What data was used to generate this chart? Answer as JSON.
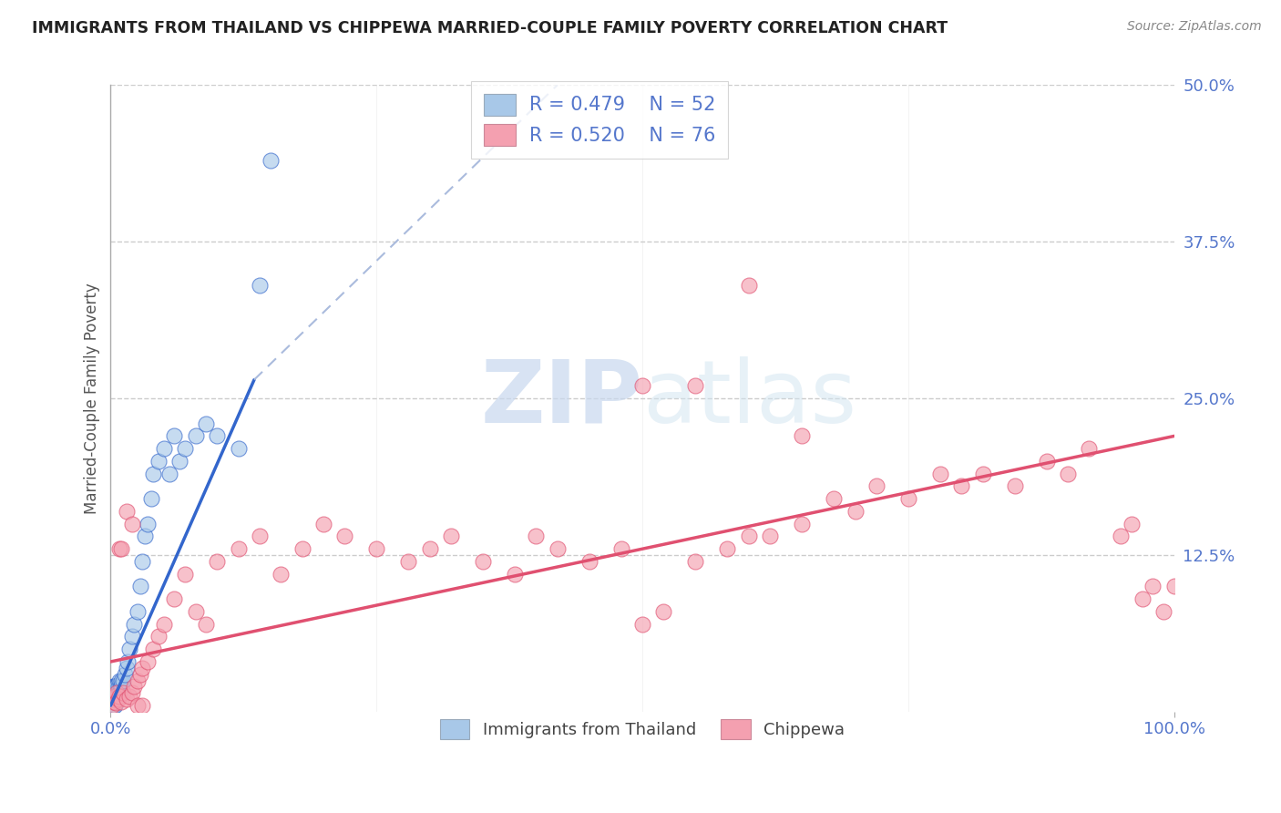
{
  "title": "IMMIGRANTS FROM THAILAND VS CHIPPEWA MARRIED-COUPLE FAMILY POVERTY CORRELATION CHART",
  "source": "Source: ZipAtlas.com",
  "ylabel": "Married-Couple Family Poverty",
  "xlim": [
    0,
    1.0
  ],
  "ylim": [
    0,
    0.5
  ],
  "xticks": [
    0.0,
    1.0
  ],
  "xticklabels": [
    "0.0%",
    "100.0%"
  ],
  "yticks": [
    0.0,
    0.125,
    0.25,
    0.375,
    0.5
  ],
  "yticklabels": [
    "",
    "12.5%",
    "25.0%",
    "37.5%",
    "50.0%"
  ],
  "legend_label1": "Immigrants from Thailand",
  "legend_label2": "Chippewa",
  "r1": "0.479",
  "n1": "52",
  "r2": "0.520",
  "n2": "76",
  "color1": "#a8c8e8",
  "color2": "#f4a0b0",
  "trendline1_color": "#3366cc",
  "trendline2_color": "#e05070",
  "dashed_color": "#aabbdd",
  "watermark_zip": "ZIP",
  "watermark_atlas": "atlas",
  "background_color": "#ffffff",
  "grid_color": "#cccccc",
  "tick_color": "#5577cc",
  "scatter1_x": [
    0.001,
    0.001,
    0.001,
    0.002,
    0.002,
    0.002,
    0.002,
    0.003,
    0.003,
    0.003,
    0.003,
    0.004,
    0.004,
    0.004,
    0.005,
    0.005,
    0.005,
    0.006,
    0.006,
    0.007,
    0.007,
    0.008,
    0.008,
    0.009,
    0.01,
    0.01,
    0.012,
    0.013,
    0.015,
    0.016,
    0.018,
    0.02,
    0.022,
    0.025,
    0.028,
    0.03,
    0.032,
    0.035,
    0.038,
    0.04,
    0.045,
    0.05,
    0.055,
    0.06,
    0.065,
    0.07,
    0.08,
    0.09,
    0.1,
    0.12,
    0.14,
    0.15
  ],
  "scatter1_y": [
    0.005,
    0.01,
    0.015,
    0.005,
    0.01,
    0.015,
    0.02,
    0.005,
    0.01,
    0.015,
    0.02,
    0.005,
    0.01,
    0.02,
    0.01,
    0.015,
    0.02,
    0.01,
    0.02,
    0.015,
    0.02,
    0.015,
    0.025,
    0.02,
    0.02,
    0.025,
    0.025,
    0.03,
    0.035,
    0.04,
    0.05,
    0.06,
    0.07,
    0.08,
    0.1,
    0.12,
    0.14,
    0.15,
    0.17,
    0.19,
    0.2,
    0.21,
    0.19,
    0.22,
    0.2,
    0.21,
    0.22,
    0.23,
    0.22,
    0.21,
    0.34,
    0.44
  ],
  "scatter2_x": [
    0.001,
    0.002,
    0.003,
    0.004,
    0.005,
    0.006,
    0.007,
    0.008,
    0.01,
    0.012,
    0.015,
    0.018,
    0.02,
    0.022,
    0.025,
    0.028,
    0.03,
    0.035,
    0.04,
    0.045,
    0.05,
    0.06,
    0.07,
    0.08,
    0.09,
    0.1,
    0.12,
    0.14,
    0.16,
    0.18,
    0.2,
    0.22,
    0.25,
    0.28,
    0.3,
    0.32,
    0.35,
    0.38,
    0.4,
    0.42,
    0.45,
    0.48,
    0.5,
    0.52,
    0.55,
    0.58,
    0.6,
    0.62,
    0.65,
    0.68,
    0.7,
    0.72,
    0.75,
    0.78,
    0.8,
    0.82,
    0.85,
    0.88,
    0.9,
    0.92,
    0.95,
    0.96,
    0.97,
    0.98,
    0.99,
    1.0,
    0.5,
    0.55,
    0.6,
    0.65,
    0.008,
    0.01,
    0.015,
    0.02,
    0.025,
    0.03
  ],
  "scatter2_y": [
    0.005,
    0.01,
    0.008,
    0.012,
    0.007,
    0.015,
    0.01,
    0.012,
    0.008,
    0.015,
    0.01,
    0.012,
    0.015,
    0.02,
    0.025,
    0.03,
    0.035,
    0.04,
    0.05,
    0.06,
    0.07,
    0.09,
    0.11,
    0.08,
    0.07,
    0.12,
    0.13,
    0.14,
    0.11,
    0.13,
    0.15,
    0.14,
    0.13,
    0.12,
    0.13,
    0.14,
    0.12,
    0.11,
    0.14,
    0.13,
    0.12,
    0.13,
    0.07,
    0.08,
    0.12,
    0.13,
    0.14,
    0.14,
    0.15,
    0.17,
    0.16,
    0.18,
    0.17,
    0.19,
    0.18,
    0.19,
    0.18,
    0.2,
    0.19,
    0.21,
    0.14,
    0.15,
    0.09,
    0.1,
    0.08,
    0.1,
    0.26,
    0.26,
    0.34,
    0.22,
    0.13,
    0.13,
    0.16,
    0.15,
    0.005,
    0.005
  ],
  "trendline1_x0": 0.0,
  "trendline1_y0": 0.005,
  "trendline1_x1": 0.135,
  "trendline1_y1": 0.265,
  "trendline1_dash_x0": 0.135,
  "trendline1_dash_y0": 0.265,
  "trendline1_dash_x1": 0.42,
  "trendline1_dash_y1": 0.5,
  "trendline2_x0": 0.0,
  "trendline2_y0": 0.04,
  "trendline2_x1": 1.0,
  "trendline2_y1": 0.22
}
